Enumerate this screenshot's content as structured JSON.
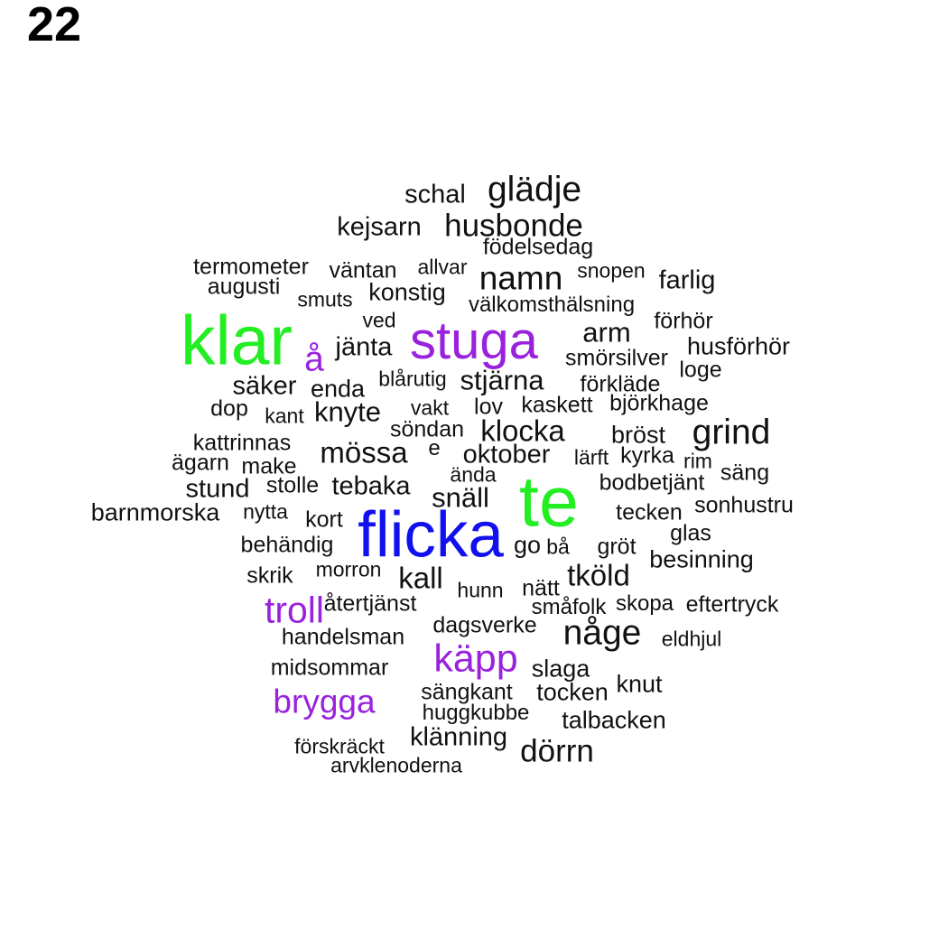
{
  "label": "22",
  "colors": {
    "green": "#22ee22",
    "purple": "#9922dd",
    "blue": "#1111ee",
    "black": "#111111"
  },
  "words": [
    {
      "text": "schal",
      "color": "black"
    },
    {
      "text": "glädje",
      "color": "black"
    },
    {
      "text": "kejsarn",
      "color": "black"
    },
    {
      "text": "husbonde",
      "color": "black"
    },
    {
      "text": "födelsedag",
      "color": "black"
    },
    {
      "text": "termometer",
      "color": "black"
    },
    {
      "text": "väntan",
      "color": "black"
    },
    {
      "text": "allvar",
      "color": "black"
    },
    {
      "text": "namn",
      "color": "black"
    },
    {
      "text": "snopen",
      "color": "black"
    },
    {
      "text": "farlig",
      "color": "black"
    },
    {
      "text": "augusti",
      "color": "black"
    },
    {
      "text": "smuts",
      "color": "black"
    },
    {
      "text": "konstig",
      "color": "black"
    },
    {
      "text": "välkomsthälsning",
      "color": "black"
    },
    {
      "text": "ved",
      "color": "black"
    },
    {
      "text": "förhör",
      "color": "black"
    },
    {
      "text": "klar",
      "color": "green"
    },
    {
      "text": "stuga",
      "color": "purple"
    },
    {
      "text": "arm",
      "color": "black"
    },
    {
      "text": "å",
      "color": "purple"
    },
    {
      "text": "jänta",
      "color": "black"
    },
    {
      "text": "husförhör",
      "color": "black"
    },
    {
      "text": "smörsilver",
      "color": "black"
    },
    {
      "text": "loge",
      "color": "black"
    },
    {
      "text": "blårutig",
      "color": "black"
    },
    {
      "text": "stjärna",
      "color": "black"
    },
    {
      "text": "förkläde",
      "color": "black"
    },
    {
      "text": "säker",
      "color": "black"
    },
    {
      "text": "enda",
      "color": "black"
    },
    {
      "text": "dop",
      "color": "black"
    },
    {
      "text": "kant",
      "color": "black"
    },
    {
      "text": "knyte",
      "color": "black"
    },
    {
      "text": "vakt",
      "color": "black"
    },
    {
      "text": "lov",
      "color": "black"
    },
    {
      "text": "kaskett",
      "color": "black"
    },
    {
      "text": "björkhage",
      "color": "black"
    },
    {
      "text": "söndan",
      "color": "black"
    },
    {
      "text": "klocka",
      "color": "black"
    },
    {
      "text": "bröst",
      "color": "black"
    },
    {
      "text": "grind",
      "color": "black"
    },
    {
      "text": "kattrinnas",
      "color": "black"
    },
    {
      "text": "mössa",
      "color": "black"
    },
    {
      "text": "e",
      "color": "black"
    },
    {
      "text": "oktober",
      "color": "black"
    },
    {
      "text": "lärft",
      "color": "black"
    },
    {
      "text": "kyrka",
      "color": "black"
    },
    {
      "text": "rim",
      "color": "black"
    },
    {
      "text": "ägarn",
      "color": "black"
    },
    {
      "text": "make",
      "color": "black"
    },
    {
      "text": "ända",
      "color": "black"
    },
    {
      "text": "säng",
      "color": "black"
    },
    {
      "text": "te",
      "color": "green"
    },
    {
      "text": "bodbetjänt",
      "color": "black"
    },
    {
      "text": "stund",
      "color": "black"
    },
    {
      "text": "stolle",
      "color": "black"
    },
    {
      "text": "tebaka",
      "color": "black"
    },
    {
      "text": "snäll",
      "color": "black"
    },
    {
      "text": "sonhustru",
      "color": "black"
    },
    {
      "text": "barnmorska",
      "color": "black"
    },
    {
      "text": "nytta",
      "color": "black"
    },
    {
      "text": "kort",
      "color": "black"
    },
    {
      "text": "tecken",
      "color": "black"
    },
    {
      "text": "flicka",
      "color": "blue"
    },
    {
      "text": "glas",
      "color": "black"
    },
    {
      "text": "behändig",
      "color": "black"
    },
    {
      "text": "go",
      "color": "black"
    },
    {
      "text": "bå",
      "color": "black"
    },
    {
      "text": "gröt",
      "color": "black"
    },
    {
      "text": "besinning",
      "color": "black"
    },
    {
      "text": "skrik",
      "color": "black"
    },
    {
      "text": "morron",
      "color": "black"
    },
    {
      "text": "kall",
      "color": "black"
    },
    {
      "text": "tköld",
      "color": "black"
    },
    {
      "text": "hunn",
      "color": "black"
    },
    {
      "text": "nätt",
      "color": "black"
    },
    {
      "text": "troll",
      "color": "purple"
    },
    {
      "text": "återtjänst",
      "color": "black"
    },
    {
      "text": "småfolk",
      "color": "black"
    },
    {
      "text": "skopa",
      "color": "black"
    },
    {
      "text": "eftertryck",
      "color": "black"
    },
    {
      "text": "dagsverke",
      "color": "black"
    },
    {
      "text": "någe",
      "color": "black"
    },
    {
      "text": "handelsman",
      "color": "black"
    },
    {
      "text": "eldhjul",
      "color": "black"
    },
    {
      "text": "käpp",
      "color": "purple"
    },
    {
      "text": "midsommar",
      "color": "black"
    },
    {
      "text": "slaga",
      "color": "black"
    },
    {
      "text": "knut",
      "color": "black"
    },
    {
      "text": "sängkant",
      "color": "black"
    },
    {
      "text": "tocken",
      "color": "black"
    },
    {
      "text": "brygga",
      "color": "purple"
    },
    {
      "text": "huggkubbe",
      "color": "black"
    },
    {
      "text": "talbacken",
      "color": "black"
    },
    {
      "text": "klänning",
      "color": "black"
    },
    {
      "text": "förskräckt",
      "color": "black"
    },
    {
      "text": "dörrn",
      "color": "black"
    },
    {
      "text": "arvklenoderna",
      "color": "black"
    }
  ]
}
